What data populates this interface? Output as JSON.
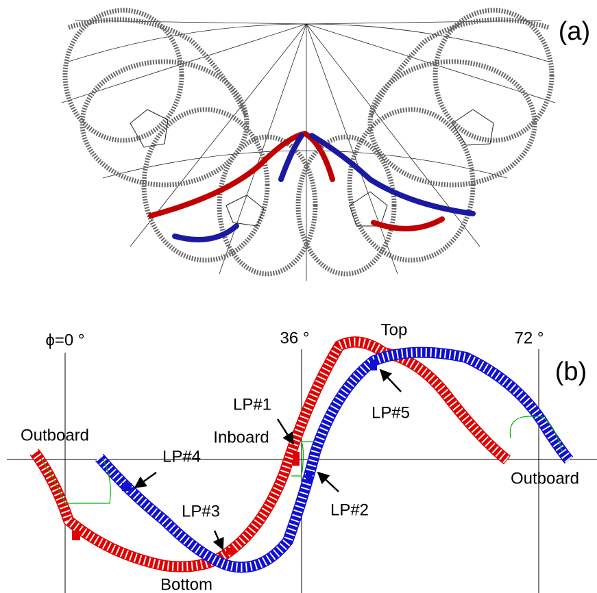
{
  "panels": [
    {
      "label": "(a)"
    },
    {
      "label": "(b)",
      "axis_labels": [
        "ϕ=0 °",
        "36 °",
        "72 °"
      ],
      "annotations": [
        "Top",
        "LP#1",
        "LP#5",
        "Outboard",
        "Inboard",
        "LP#4",
        "Outboard",
        "LP#3",
        "LP#2",
        "Bottom"
      ]
    }
  ]
}
